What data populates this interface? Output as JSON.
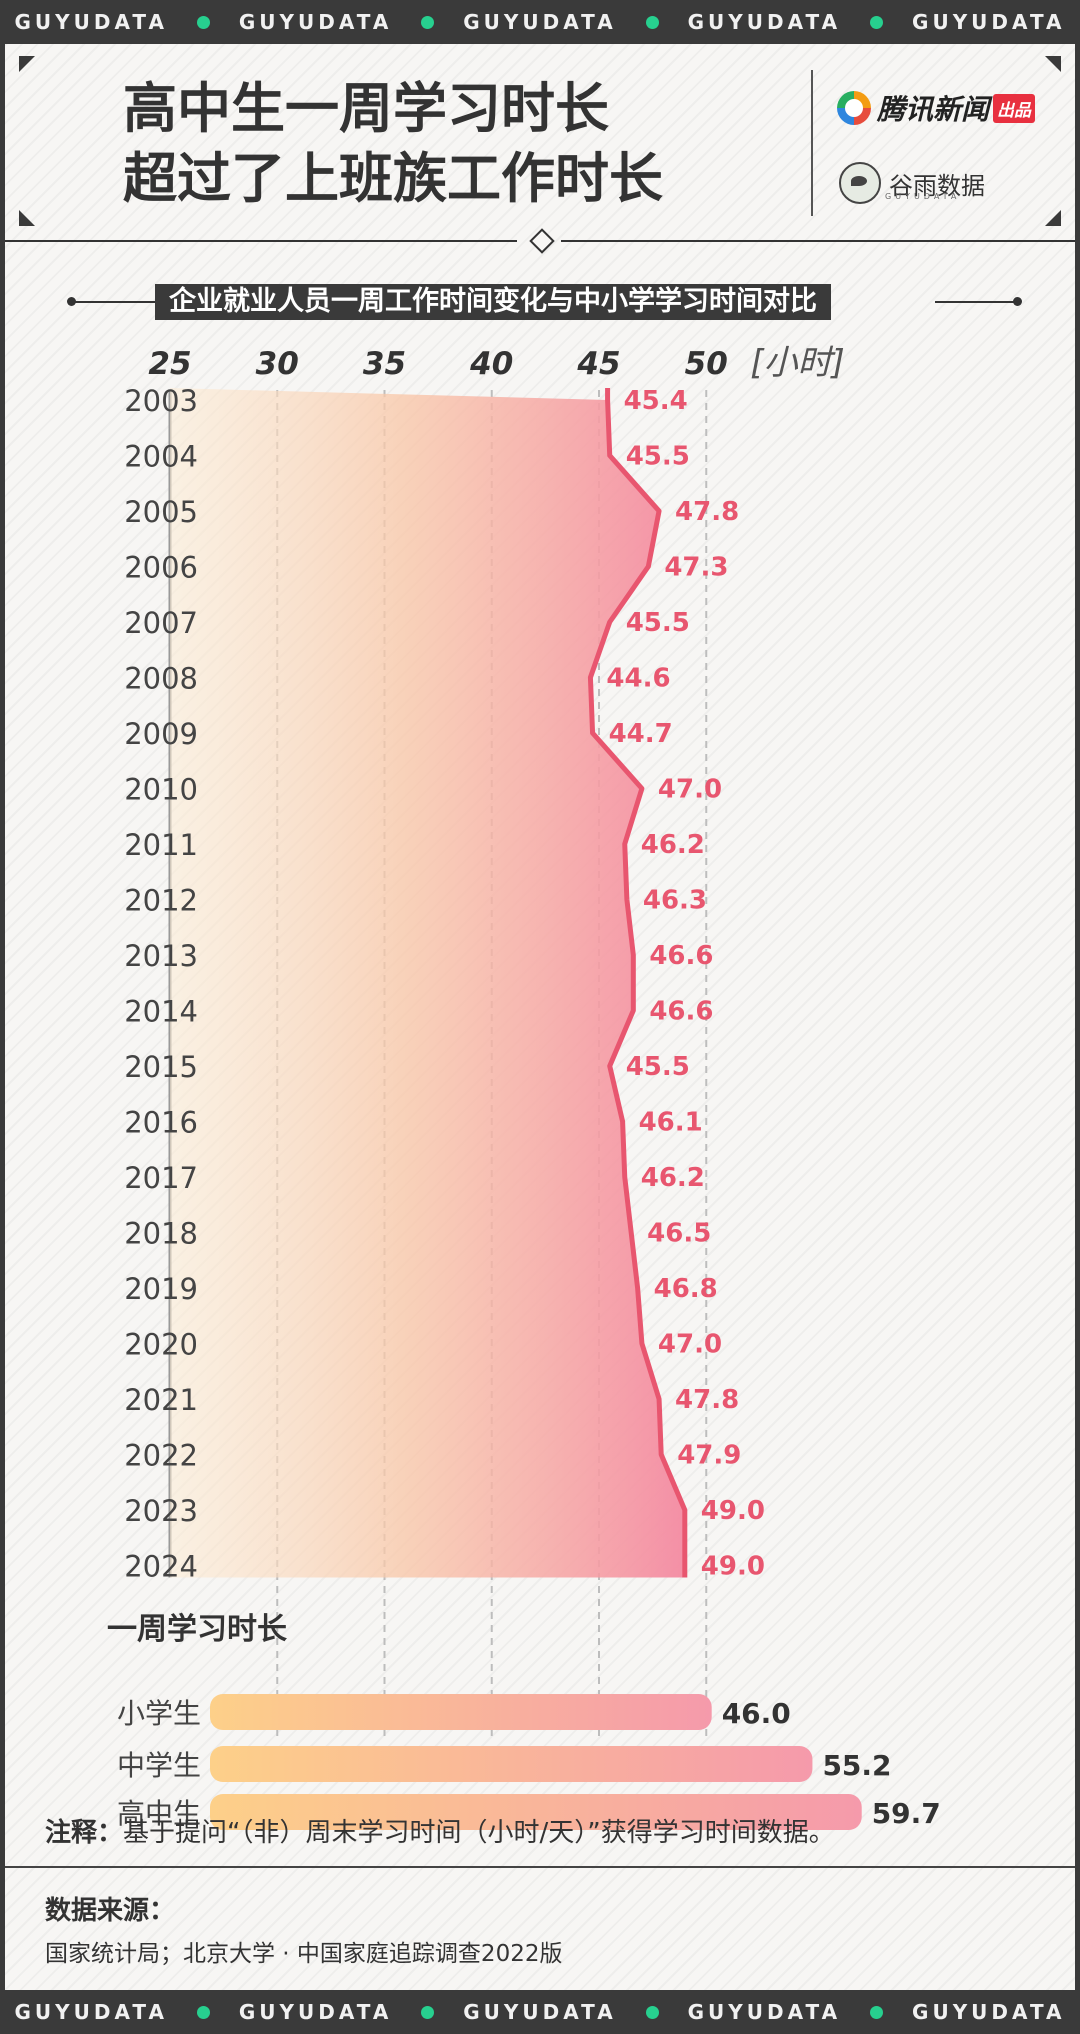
{
  "banner": {
    "text": "GUYUDATA",
    "count": 5
  },
  "header": {
    "title_line1": "高中生一周学习时长",
    "title_line2": "超过了上班族工作时长",
    "brand1": "腾讯新闻",
    "brand1_tag": "出品",
    "brand2": "谷雨数据",
    "brand2_sub": "GUYUDATA"
  },
  "chart_title": "企业就业人员一周工作时间变化与中小学学习时间对比",
  "colors": {
    "line": "#e8566f",
    "label": "#e8566f",
    "dark": "#3a3a3a",
    "accent_dot": "#27d08f"
  },
  "chart_data": [
    {
      "type": "area",
      "orientation": "horizontal",
      "x_unit": "[小时]",
      "x_ticks": [
        25,
        30,
        35,
        40,
        45,
        50
      ],
      "xlim": [
        25,
        50
      ],
      "categories": [
        "2003",
        "2004",
        "2005",
        "2006",
        "2007",
        "2008",
        "2009",
        "2010",
        "2011",
        "2012",
        "2013",
        "2014",
        "2015",
        "2016",
        "2017",
        "2018",
        "2019",
        "2020",
        "2021",
        "2022",
        "2023",
        "2024"
      ],
      "values": [
        45.4,
        45.5,
        47.8,
        47.3,
        45.5,
        44.6,
        44.7,
        47.0,
        46.2,
        46.3,
        46.6,
        46.6,
        45.5,
        46.1,
        46.2,
        46.5,
        46.8,
        47.0,
        47.8,
        47.9,
        49.0,
        49.0
      ],
      "value_labels": [
        "45.4",
        "45.5",
        "47.8",
        "47.3",
        "45.5",
        "44.6",
        "44.7",
        "47.0",
        "46.2",
        "46.3",
        "46.6",
        "46.6",
        "45.5",
        "46.1",
        "46.2",
        "46.5",
        "46.8",
        "47.0",
        "47.8",
        "47.9",
        "49.0",
        "49.0"
      ],
      "grid": "dashed vertical"
    },
    {
      "type": "bar",
      "orientation": "horizontal",
      "title": "一周学习时长",
      "categories": [
        "小学生",
        "中学生",
        "高中生"
      ],
      "values": [
        46.0,
        55.2,
        59.7
      ],
      "value_labels": [
        "46.0",
        "55.2",
        "59.7"
      ]
    }
  ],
  "note": {
    "label": "注释：",
    "text": "基于提问“（非）周末学习时间（小时/天）”获得学习时间数据。"
  },
  "source": {
    "label": "数据来源：",
    "text": "国家统计局；北京大学 · 中国家庭追踪调查2022版"
  }
}
